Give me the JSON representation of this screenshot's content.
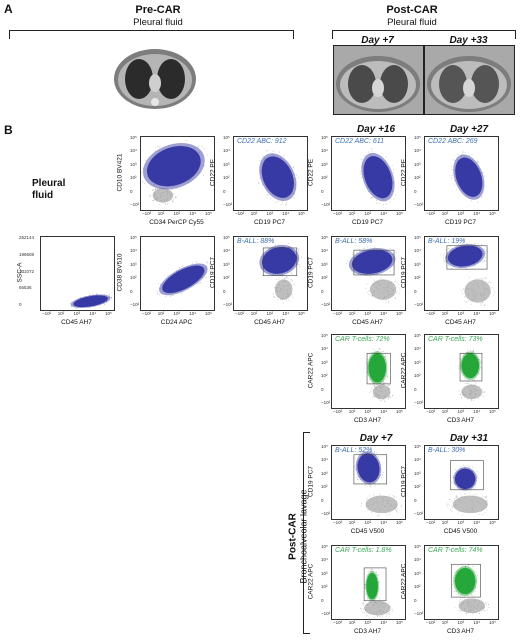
{
  "panels": {
    "a": "A",
    "b": "B"
  },
  "header_a": {
    "pre": {
      "title": "Pre-CAR",
      "subtitle": "Pleural fluid"
    },
    "post": {
      "title": "Post-CAR",
      "subtitle": "Pleural fluid"
    },
    "ct_days": [
      "Day +7",
      "Day +33"
    ]
  },
  "section_b": {
    "pleural_label": "Pleural fluid",
    "day_headers_top": [
      "Day +16",
      "Day +27"
    ],
    "day_headers_bal": [
      "Day +7",
      "Day +31"
    ],
    "bal_label": {
      "title": "Post-CAR",
      "subtitle": "Bronchoalveolar lavage"
    }
  },
  "plots": [
    {
      "id": "p-cd10-cd34",
      "xlabel": "CD34 PerCP Cy55",
      "ylabel": "CD10 BV421",
      "ann": "",
      "color": "blue"
    },
    {
      "id": "p-cd22-pre",
      "xlabel": "CD19 PC7",
      "ylabel": "CD22 PE",
      "ann": "CD22 ABC: 912",
      "color": "blue"
    },
    {
      "id": "p-cd22-d16",
      "xlabel": "CD19 PC7",
      "ylabel": "CD22 PE",
      "ann": "CD22 ABC: 611",
      "color": "blue"
    },
    {
      "id": "p-cd22-d27",
      "xlabel": "CD19 PC7",
      "ylabel": "CD22 PE",
      "ann": "CD22 ABC: 269",
      "color": "blue"
    },
    {
      "id": "p-ssc-cd45",
      "xlabel": "CD45 AH7",
      "ylabel": "SSC-A",
      "ann": "",
      "color": "blue"
    },
    {
      "id": "p-cd38-cd24",
      "xlabel": "CD24 APC",
      "ylabel": "CD38 BV510",
      "ann": "",
      "color": "blue"
    },
    {
      "id": "p-ball-pre",
      "xlabel": "CD45 AH7",
      "ylabel": "CD19 PC7",
      "ann": "B-ALL: 88%",
      "color": "blue"
    },
    {
      "id": "p-ball-d16",
      "xlabel": "CD45 AH7",
      "ylabel": "CD19 PC7",
      "ann": "B-ALL: 58%",
      "color": "blue"
    },
    {
      "id": "p-ball-d27",
      "xlabel": "CD45 AH7",
      "ylabel": "CD19 PC7",
      "ann": "B-ALL: 19%",
      "color": "blue"
    },
    {
      "id": "p-car-d16",
      "xlabel": "CD3 AH7",
      "ylabel": "CAR22 APC",
      "ann": "CAR T-cells: 72%",
      "color": "green"
    },
    {
      "id": "p-car-d27",
      "xlabel": "CD3 AH7",
      "ylabel": "CAR22 APC",
      "ann": "CAR T-cells: 73%",
      "color": "green"
    },
    {
      "id": "p-bal-ball-d7",
      "xlabel": "CD45 V500",
      "ylabel": "CD19 PC7",
      "ann": "B-ALL: 52%",
      "color": "blue"
    },
    {
      "id": "p-bal-ball-d31",
      "xlabel": "CD45 V500",
      "ylabel": "CD19 PC7",
      "ann": "B-ALL: 30%",
      "color": "blue"
    },
    {
      "id": "p-bal-car-d7",
      "xlabel": "CD3 AH7",
      "ylabel": "CAR22 APC",
      "ann": "CAR T-cells: 1.8%",
      "color": "green"
    },
    {
      "id": "p-bal-car-d31",
      "xlabel": "CD3 AH7",
      "ylabel": "CAR22 APC",
      "ann": "CAR T-cells: 74%",
      "color": "green"
    }
  ],
  "ssc_ticks": [
    "262144",
    "196608",
    "131072",
    "65536",
    "0"
  ],
  "log_ticks_y": [
    "10⁵",
    "10⁴",
    "10³",
    "10²",
    "0",
    "−10²"
  ],
  "log_ticks_x": [
    "−10²",
    "10²",
    "10³",
    "10⁴",
    "10⁵"
  ],
  "colors": {
    "blue": "#2b2f9e",
    "green": "#1aa22f",
    "gate": "#444444",
    "ann_blue": "#3a6fb0",
    "ann_green": "#3aa655"
  }
}
